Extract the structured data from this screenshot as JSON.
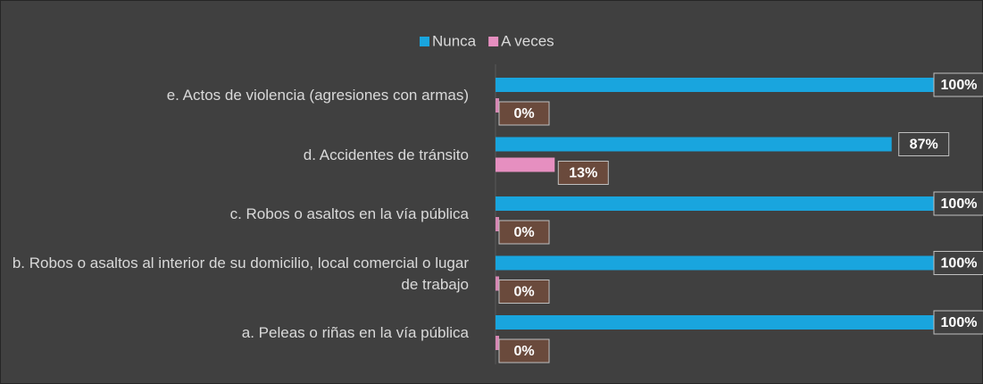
{
  "chart_data": {
    "type": "hbar",
    "categories": [
      "e. Actos de violencia (agresiones con armas)",
      "d. Accidentes de tránsito",
      "c. Robos o asaltos en la vía pública",
      "b. Robos o asaltos al interior de su domicilio, local comercial o lugar de trabajo",
      "a. Peleas o riñas en la vía pública"
    ],
    "series": [
      {
        "name": "Nunca",
        "color": "#19a5de",
        "values": [
          100,
          87,
          100,
          100,
          100
        ],
        "value_labels": [
          "100%",
          "87%",
          "100%",
          "100%",
          "100%"
        ]
      },
      {
        "name": "A veces",
        "color": "#e68fc0",
        "values": [
          0,
          13,
          0,
          0,
          0
        ],
        "value_labels": [
          "0%",
          "13%",
          "0%",
          "0%",
          "0%"
        ]
      }
    ],
    "xlim": [
      0,
      100
    ],
    "legend": "top"
  }
}
